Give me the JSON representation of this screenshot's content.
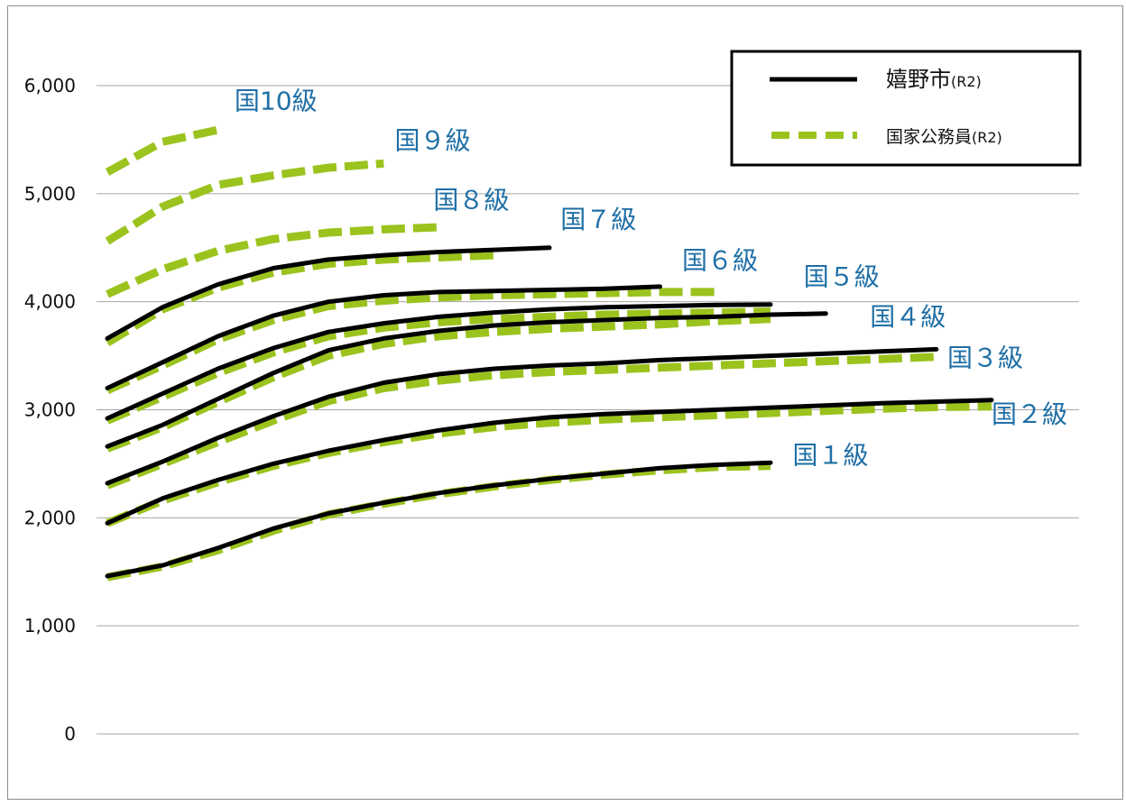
{
  "colors": {
    "city": "#000000",
    "national": "#9BC31E",
    "grade_label": "#1F6FA6",
    "grid": "#A6A6A6",
    "frame": "#8C8C8C"
  },
  "legend": {
    "city_label": "嬉野市",
    "city_suffix": "(R2)",
    "national_label": "国家公務員",
    "national_suffix": "(R2)",
    "placement": "top-right"
  },
  "chart_data": {
    "type": "line",
    "title": "",
    "xlabel": "",
    "ylabel": "",
    "ylim": [
      0,
      6000
    ],
    "yticks": [
      0,
      1000,
      2000,
      3000,
      4000,
      5000,
      6000
    ],
    "ytick_labels": [
      "0",
      "1,000",
      "2,000",
      "3,000",
      "4,000",
      "5,000",
      "6,000"
    ],
    "xlim": [
      0,
      9
    ],
    "grid": true,
    "series": [
      {
        "grade": "国１級",
        "name": "嬉野市(R2)",
        "style": "solid",
        "x": [
          0,
          0.5,
          1,
          1.5,
          2,
          2.5,
          3,
          3.5,
          4,
          4.5,
          5,
          5.5,
          6
        ],
        "y": [
          1460,
          1560,
          1720,
          1900,
          2040,
          2140,
          2230,
          2300,
          2360,
          2410,
          2460,
          2490,
          2510
        ]
      },
      {
        "grade": "国１級",
        "name": "国家公務員(R2)",
        "style": "dashed",
        "x": [
          0,
          0.5,
          1,
          1.5,
          2,
          2.5,
          3,
          3.5,
          4,
          4.5,
          5,
          5.5,
          6
        ],
        "y": [
          1450,
          1550,
          1700,
          1880,
          2030,
          2130,
          2220,
          2290,
          2350,
          2400,
          2440,
          2470,
          2480
        ]
      },
      {
        "grade": "国２級",
        "name": "嬉野市(R2)",
        "style": "solid",
        "x": [
          0,
          0.5,
          1,
          1.5,
          2,
          2.5,
          3,
          3.5,
          4,
          4.5,
          5,
          5.5,
          6,
          6.5,
          7,
          7.5,
          8
        ],
        "y": [
          1950,
          2180,
          2350,
          2500,
          2620,
          2720,
          2810,
          2880,
          2930,
          2960,
          2980,
          3000,
          3020,
          3040,
          3060,
          3075,
          3090
        ]
      },
      {
        "grade": "国２級",
        "name": "国家公務員(R2)",
        "style": "dashed",
        "x": [
          0,
          0.5,
          1,
          1.5,
          2,
          2.5,
          3,
          3.5,
          4,
          4.5,
          5,
          5.5,
          6,
          6.5,
          7,
          7.5,
          8
        ],
        "y": [
          1950,
          2160,
          2330,
          2480,
          2600,
          2700,
          2780,
          2840,
          2880,
          2910,
          2930,
          2950,
          2970,
          2990,
          3010,
          3025,
          3030
        ]
      },
      {
        "grade": "国３級",
        "name": "嬉野市(R2)",
        "style": "solid",
        "x": [
          0,
          0.5,
          1,
          1.5,
          2,
          2.5,
          3,
          3.5,
          4,
          4.5,
          5,
          5.5,
          6,
          6.5,
          7,
          7.5
        ],
        "y": [
          2320,
          2520,
          2740,
          2940,
          3120,
          3250,
          3330,
          3380,
          3410,
          3430,
          3460,
          3480,
          3500,
          3520,
          3540,
          3560
        ]
      },
      {
        "grade": "国３級",
        "name": "国家公務員(R2)",
        "style": "dashed",
        "x": [
          0,
          0.5,
          1,
          1.5,
          2,
          2.5,
          3,
          3.5,
          4,
          4.5,
          5,
          5.5,
          6,
          6.5,
          7,
          7.5
        ],
        "y": [
          2300,
          2500,
          2700,
          2900,
          3080,
          3200,
          3270,
          3320,
          3350,
          3370,
          3390,
          3410,
          3430,
          3450,
          3470,
          3490
        ]
      },
      {
        "grade": "国４級",
        "name": "嬉野市(R2)",
        "style": "solid",
        "x": [
          0,
          0.5,
          1,
          1.5,
          2,
          2.5,
          3,
          3.5,
          4,
          4.5,
          5,
          5.5,
          6,
          6.5
        ],
        "y": [
          2660,
          2860,
          3100,
          3340,
          3550,
          3660,
          3730,
          3780,
          3810,
          3830,
          3850,
          3860,
          3880,
          3890
        ]
      },
      {
        "grade": "国４級",
        "name": "国家公務員(R2)",
        "style": "dashed",
        "x": [
          0,
          0.5,
          1,
          1.5,
          2,
          2.5,
          3,
          3.5,
          4,
          4.5,
          5,
          5.5,
          6
        ],
        "y": [
          2640,
          2840,
          3070,
          3300,
          3500,
          3610,
          3680,
          3720,
          3750,
          3770,
          3790,
          3820,
          3840
        ]
      },
      {
        "grade": "国５級",
        "name": "嬉野市(R2)",
        "style": "solid",
        "x": [
          0,
          0.5,
          1,
          1.5,
          2,
          2.5,
          3,
          3.5,
          4,
          4.5,
          5,
          5.5,
          6
        ],
        "y": [
          2920,
          3150,
          3380,
          3570,
          3720,
          3800,
          3860,
          3900,
          3930,
          3950,
          3960,
          3970,
          3975
        ]
      },
      {
        "grade": "国５級",
        "name": "国家公務員(R2)",
        "style": "dashed",
        "x": [
          0,
          0.5,
          1,
          1.5,
          2,
          2.5,
          3,
          3.5,
          4,
          4.5,
          5,
          5.5,
          6
        ],
        "y": [
          2900,
          3120,
          3340,
          3530,
          3680,
          3760,
          3810,
          3840,
          3860,
          3880,
          3890,
          3900,
          3910
        ]
      },
      {
        "grade": "国６級",
        "name": "嬉野市(R2)",
        "style": "solid",
        "x": [
          0,
          0.5,
          1,
          1.5,
          2,
          2.5,
          3,
          3.5,
          4,
          4.5,
          5
        ],
        "y": [
          3200,
          3440,
          3680,
          3870,
          4000,
          4060,
          4090,
          4100,
          4110,
          4120,
          4140
        ]
      },
      {
        "grade": "国６級",
        "name": "国家公務員(R2)",
        "style": "dashed",
        "x": [
          0,
          0.5,
          1,
          1.5,
          2,
          2.5,
          3,
          3.5,
          4,
          4.5,
          5,
          5.5
        ],
        "y": [
          3180,
          3410,
          3650,
          3830,
          3960,
          4010,
          4040,
          4060,
          4070,
          4080,
          4090,
          4090
        ]
      },
      {
        "grade": "国７級",
        "name": "嬉野市(R2)",
        "style": "solid",
        "x": [
          0,
          0.5,
          1,
          1.5,
          2,
          2.5,
          3,
          3.5,
          4
        ],
        "y": [
          3660,
          3950,
          4160,
          4310,
          4390,
          4430,
          4460,
          4480,
          4500
        ]
      },
      {
        "grade": "国７級",
        "name": "国家公務員(R2)",
        "style": "dashed",
        "x": [
          0,
          0.5,
          1,
          1.5,
          2,
          2.5,
          3,
          3.5
        ],
        "y": [
          3620,
          3930,
          4130,
          4270,
          4350,
          4390,
          4410,
          4430
        ]
      },
      {
        "grade": "国８級",
        "name": "国家公務員(R2)",
        "style": "dashed",
        "x": [
          0,
          0.5,
          1,
          1.5,
          2,
          2.5,
          3
        ],
        "y": [
          4070,
          4300,
          4470,
          4580,
          4640,
          4670,
          4690
        ]
      },
      {
        "grade": "国９級",
        "name": "国家公務員(R2)",
        "style": "dashed",
        "x": [
          0,
          0.5,
          1,
          1.5,
          2,
          2.5
        ],
        "y": [
          4560,
          4880,
          5080,
          5170,
          5240,
          5280
        ]
      },
      {
        "grade": "国10級",
        "name": "国家公務員(R2)",
        "style": "dashed",
        "x": [
          0,
          0.5,
          1
        ],
        "y": [
          5200,
          5480,
          5590
        ]
      }
    ],
    "grade_labels": [
      {
        "text": "国１級",
        "x": 6.2,
        "y": 2500
      },
      {
        "text": "国２級",
        "x": 8.0,
        "y": 2880
      },
      {
        "text": "国３級",
        "x": 7.6,
        "y": 3400
      },
      {
        "text": "国４級",
        "x": 6.9,
        "y": 3780
      },
      {
        "text": "国５級",
        "x": 6.3,
        "y": 4150
      },
      {
        "text": "国６級",
        "x": 5.2,
        "y": 4300
      },
      {
        "text": "国７級",
        "x": 4.1,
        "y": 4680
      },
      {
        "text": "国８級",
        "x": 2.95,
        "y": 4860
      },
      {
        "text": "国９級",
        "x": 2.6,
        "y": 5410
      },
      {
        "text": "国10級",
        "x": 1.15,
        "y": 5780
      }
    ]
  }
}
